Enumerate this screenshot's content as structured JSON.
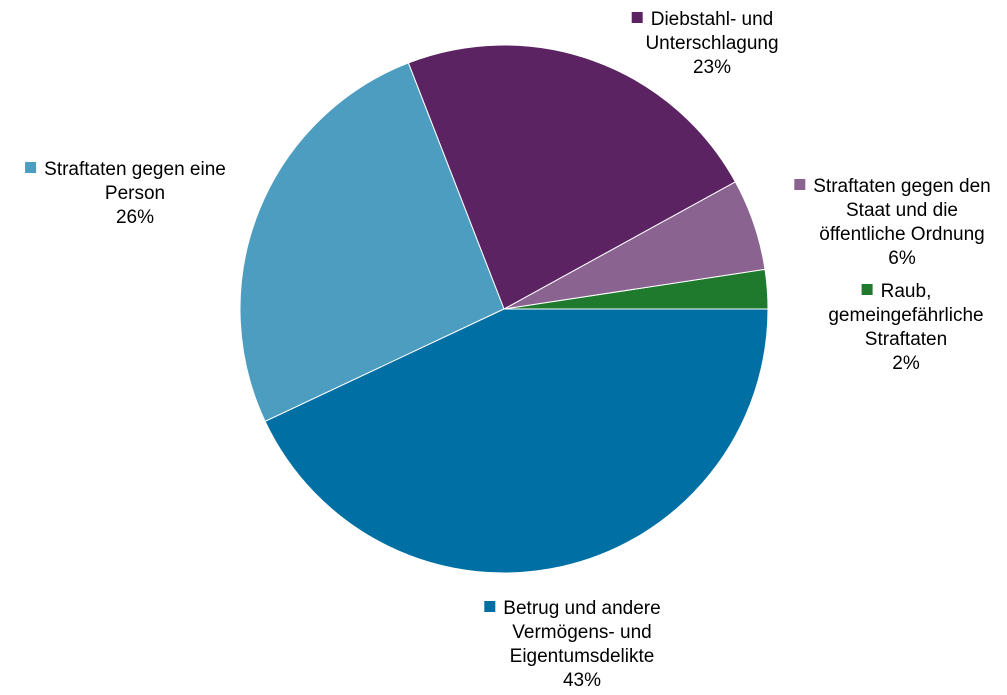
{
  "chart_data": {
    "type": "pie",
    "title": "",
    "slices": [
      {
        "label": "Raub, gemeingefährliche Straftaten",
        "label_lines": [
          "Raub,",
          "gemeingefährliche",
          "Straftaten"
        ],
        "pct_label": "2%",
        "value": 2.4,
        "color": "#1F7A2E"
      },
      {
        "label": "Straftaten gegen den Staat und die öffentliche Ordnung",
        "label_lines": [
          "Straftaten gegen den",
          "Staat und die",
          "öffentliche Ordnung"
        ],
        "pct_label": "6%",
        "value": 5.6,
        "color": "#8A6390"
      },
      {
        "label": "Diebstahl- und Unterschlagung",
        "label_lines": [
          "Diebstahl- und",
          "Unterschlagung"
        ],
        "pct_label": "23%",
        "value": 22.9,
        "color": "#5C2363"
      },
      {
        "label": "Straftaten gegen eine Person",
        "label_lines": [
          "Straftaten gegen eine",
          "Person"
        ],
        "pct_label": "26%",
        "value": 26.1,
        "color": "#4C9DBF"
      },
      {
        "label": "Betrug und andere Vermögens- und Eigentumsdelikte",
        "label_lines": [
          "Betrug und andere",
          "Vermögens- und",
          "Eigentumsdelikte"
        ],
        "pct_label": "43%",
        "value": 43.0,
        "color": "#006FA3"
      }
    ],
    "start": "3 o'clock",
    "direction": "counterclockwise",
    "legend": "none (data labels beside slices)"
  }
}
